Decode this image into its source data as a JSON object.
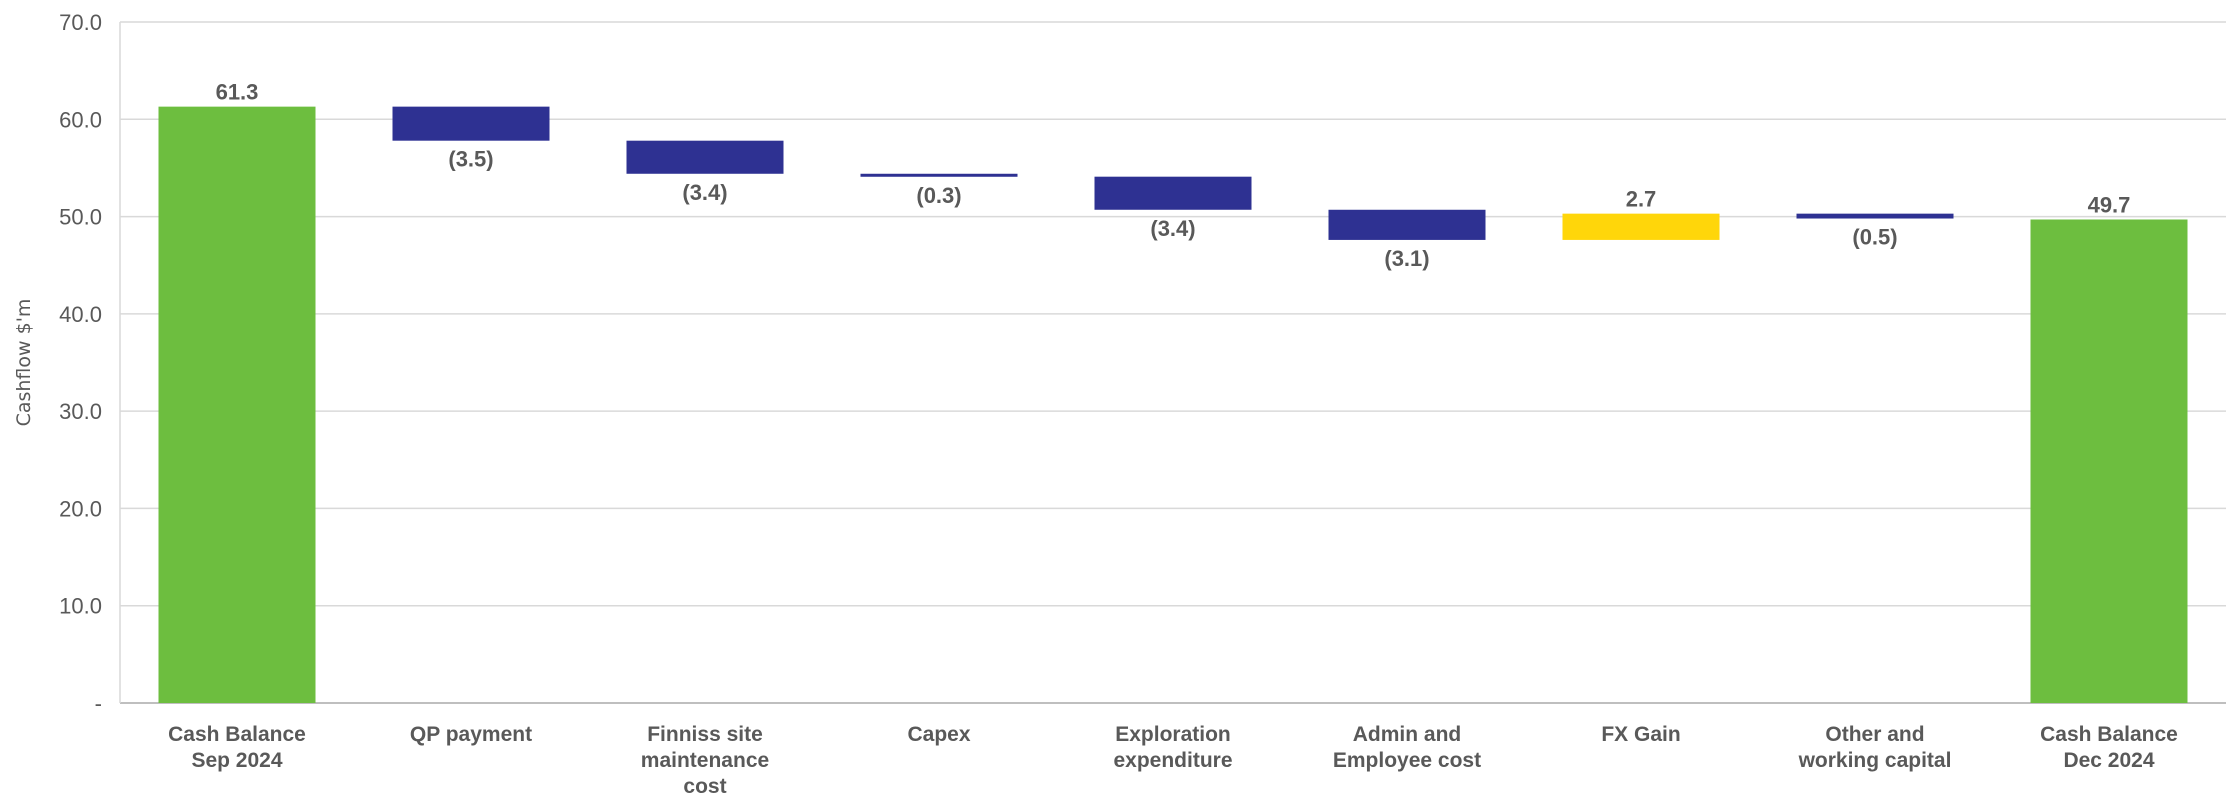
{
  "chart_data": {
    "type": "bar",
    "subtype": "waterfall",
    "title": "",
    "xlabel": "",
    "ylabel": "Cashflow $'m",
    "ylim": [
      0,
      70
    ],
    "y_ticks": [
      0,
      10,
      20,
      30,
      40,
      50,
      60,
      70
    ],
    "y_tick_labels": [
      "-",
      "10.0",
      "20.0",
      "30.0",
      "40.0",
      "50.0",
      "60.0",
      "70.0"
    ],
    "grid": true,
    "legend": "none",
    "categories": [
      [
        "Cash Balance",
        "Sep 2024"
      ],
      [
        "QP payment"
      ],
      [
        "Finniss site",
        "maintenance",
        "cost"
      ],
      [
        "Capex"
      ],
      [
        "Exploration",
        "expenditure"
      ],
      [
        "Admin and",
        "Employee cost"
      ],
      [
        "FX Gain"
      ],
      [
        "Other and",
        "working capital"
      ],
      [
        "Cash Balance",
        "Dec 2024"
      ]
    ],
    "values": [
      61.3,
      -3.5,
      -3.4,
      -0.3,
      -3.4,
      -3.1,
      2.7,
      -0.5,
      49.7
    ],
    "kinds": [
      "total",
      "delta",
      "delta",
      "delta",
      "delta",
      "delta",
      "delta",
      "delta",
      "total"
    ],
    "data_labels": [
      "61.3",
      "(3.5)",
      "(3.4)",
      "(0.3)",
      "(3.4)",
      "(3.1)",
      "2.7",
      "(0.5)",
      "49.7"
    ],
    "colors": {
      "total": "#6DBE3F",
      "decrease": "#2E3192",
      "increase": "#FFD60A"
    }
  }
}
